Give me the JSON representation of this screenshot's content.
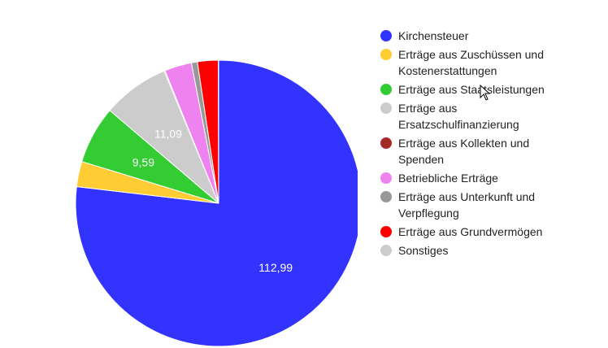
{
  "chart_data": {
    "type": "pie",
    "start_angle": "top, clockwise",
    "legend_position": "right",
    "slices": [
      {
        "name": "Kirchensteuer",
        "value": 112.99,
        "label": "112,99",
        "color": "#3333ff"
      },
      {
        "name": "Erträge aus Zuschüssen und Kostenerstattungen",
        "value": 4.2,
        "label": "",
        "color": "#ffcc33"
      },
      {
        "name": "Erträge aus Staatsleistungen",
        "value": 9.59,
        "label": "9,59",
        "color": "#33cc33"
      },
      {
        "name": "Erträge aus Ersatzschulfinanzierung",
        "value": 11.09,
        "label": "11,09",
        "color": "#cccccc"
      },
      {
        "name": "Erträge aus Kollekten und Spenden",
        "value": 0.15,
        "label": "",
        "color": "#a52a2a"
      },
      {
        "name": "Betriebliche Erträge",
        "value": 4.5,
        "label": "",
        "color": "#ee82ee"
      },
      {
        "name": "Erträge aus Unterkunft und Verpflegung",
        "value": 1.0,
        "label": "",
        "color": "#999999"
      },
      {
        "name": "Erträge aus Grundvermögen",
        "value": 3.45,
        "label": "",
        "color": "#ff0000"
      },
      {
        "name": "Sonstiges",
        "value": 0.05,
        "label": "",
        "color": "#cccccc"
      }
    ]
  }
}
